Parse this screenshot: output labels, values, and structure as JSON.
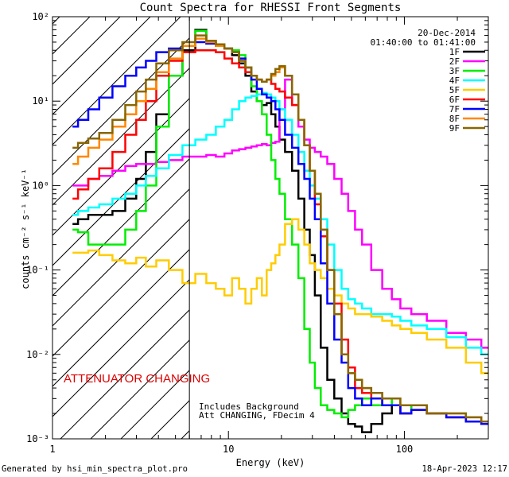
{
  "chart_data": {
    "type": "line",
    "title": "Count Spectra for RHESSI Front Segments",
    "xlabel": "Energy (keV)",
    "ylabel": "counts cm⁻² s⁻¹ keV⁻¹",
    "xscale": "log",
    "yscale": "log",
    "xlim": [
      1,
      300
    ],
    "ylim": [
      0.001,
      100
    ],
    "x_ticks": [
      {
        "value": 1,
        "label": "1"
      },
      {
        "value": 10,
        "label": "10"
      },
      {
        "value": 100,
        "label": "100"
      }
    ],
    "y_ticks": [
      {
        "exp": -3,
        "label": "10⁻³"
      },
      {
        "exp": -2,
        "label": "10⁻²"
      },
      {
        "exp": -1,
        "label": "10⁻¹"
      },
      {
        "exp": 0,
        "label": "10⁰"
      },
      {
        "exp": 1,
        "label": "10¹"
      },
      {
        "exp": 2,
        "label": "10²"
      }
    ],
    "date_label": "20-Dec-2014",
    "time_range_label": "01:40:00 to 01:41:00",
    "attenuator_label": "ATTENUATOR CHANGING",
    "attenuator_color": "#dd0000",
    "note_line1": "Includes Background",
    "note_line2": "Att CHANGING, FDecim 4",
    "vline_energy": 6,
    "series": [
      {
        "name": "1F",
        "color": "#000000",
        "x": [
          1.3,
          1.5,
          1.7,
          2,
          2.4,
          2.8,
          3.2,
          3.6,
          4.2,
          5,
          6,
          7,
          8,
          9,
          10,
          11,
          12,
          13,
          14,
          15,
          16,
          17,
          18,
          19,
          20,
          22,
          24,
          26,
          28,
          30,
          32,
          35,
          38,
          42,
          46,
          50,
          55,
          60,
          70,
          80,
          90,
          100,
          120,
          150,
          200,
          250,
          300
        ],
        "y": [
          0.35,
          0.4,
          0.45,
          0.45,
          0.5,
          0.7,
          1.2,
          2.5,
          7,
          20,
          40,
          70,
          52,
          45,
          42,
          35,
          28,
          20,
          13,
          10,
          9,
          9.5,
          7,
          5,
          3.5,
          2.5,
          1.5,
          0.7,
          0.3,
          0.15,
          0.05,
          0.012,
          0.005,
          0.003,
          0.002,
          0.0015,
          0.0014,
          0.0012,
          0.0015,
          0.002,
          0.0025,
          0.002,
          0.0025,
          0.002,
          0.0018,
          0.0016,
          0.0015
        ]
      },
      {
        "name": "2F",
        "color": "#ff00ff",
        "x": [
          1.3,
          1.5,
          1.7,
          2,
          2.4,
          2.8,
          3.2,
          3.6,
          4.2,
          5,
          6,
          7,
          8,
          9,
          10,
          11,
          12,
          13,
          14,
          15,
          16,
          17,
          18,
          19,
          20,
          22,
          24,
          26,
          28,
          30,
          32,
          35,
          38,
          42,
          46,
          50,
          55,
          60,
          70,
          80,
          90,
          100,
          120,
          150,
          200,
          250,
          300
        ],
        "y": [
          1.0,
          1.0,
          1.2,
          1.3,
          1.5,
          1.7,
          1.8,
          1.8,
          1.9,
          2.0,
          2.2,
          2.2,
          2.3,
          2.2,
          2.4,
          2.6,
          2.7,
          2.8,
          2.9,
          3.0,
          3.1,
          3.0,
          3.2,
          3.3,
          8,
          18,
          9,
          5,
          3.5,
          2.8,
          2.5,
          2.2,
          1.8,
          1.2,
          0.8,
          0.5,
          0.3,
          0.2,
          0.1,
          0.06,
          0.045,
          0.035,
          0.03,
          0.025,
          0.018,
          0.015,
          0.012
        ]
      },
      {
        "name": "3F",
        "color": "#00ee00",
        "x": [
          1.3,
          1.5,
          1.7,
          2,
          2.4,
          2.8,
          3.2,
          3.6,
          4.2,
          5,
          6,
          7,
          8,
          9,
          10,
          11,
          12,
          13,
          14,
          15,
          16,
          17,
          18,
          19,
          20,
          22,
          24,
          26,
          28,
          30,
          32,
          35,
          38,
          42,
          46,
          50,
          55,
          60,
          70,
          80,
          90,
          100,
          120,
          150,
          200,
          250,
          300
        ],
        "y": [
          0.3,
          0.28,
          0.2,
          0.2,
          0.2,
          0.3,
          0.5,
          1.0,
          5,
          20,
          45,
          68,
          50,
          45,
          42,
          40,
          35,
          25,
          15,
          10,
          7,
          4,
          2,
          1.2,
          0.8,
          0.4,
          0.2,
          0.08,
          0.02,
          0.008,
          0.004,
          0.0025,
          0.0022,
          0.002,
          0.0018,
          0.0022,
          0.0025,
          0.003,
          0.0025,
          0.003,
          0.0025,
          0.002,
          0.0025,
          0.002,
          0.0018,
          0.0016,
          0.0015
        ]
      },
      {
        "name": "4F",
        "color": "#00ffff",
        "x": [
          1.3,
          1.5,
          1.7,
          2,
          2.4,
          2.8,
          3.2,
          3.6,
          4.2,
          5,
          6,
          7,
          8,
          9,
          10,
          11,
          12,
          13,
          14,
          15,
          16,
          17,
          18,
          19,
          20,
          22,
          24,
          26,
          28,
          30,
          32,
          35,
          38,
          42,
          46,
          50,
          55,
          60,
          70,
          80,
          90,
          100,
          120,
          150,
          200,
          250,
          300
        ],
        "y": [
          0.45,
          0.5,
          0.55,
          0.6,
          0.7,
          0.8,
          1.0,
          1.3,
          1.6,
          2.3,
          3.0,
          3.5,
          4.0,
          5.0,
          6.0,
          8.0,
          10,
          11,
          11.5,
          12,
          12.5,
          12,
          11,
          10,
          8,
          6,
          4,
          2.5,
          1.5,
          1.0,
          0.7,
          0.4,
          0.2,
          0.1,
          0.06,
          0.045,
          0.04,
          0.035,
          0.03,
          0.03,
          0.028,
          0.025,
          0.022,
          0.02,
          0.016,
          0.012,
          0.01
        ]
      },
      {
        "name": "5F",
        "color": "#ffcc00",
        "x": [
          1.3,
          1.5,
          1.7,
          2,
          2.4,
          2.8,
          3.2,
          3.6,
          4.2,
          5,
          6,
          7,
          8,
          9,
          10,
          11,
          12,
          13,
          14,
          15,
          16,
          17,
          18,
          19,
          20,
          22,
          24,
          26,
          28,
          30,
          32,
          35,
          38,
          42,
          46,
          50,
          55,
          60,
          70,
          80,
          90,
          100,
          120,
          150,
          200,
          250,
          300
        ],
        "y": [
          0.16,
          0.16,
          0.17,
          0.15,
          0.13,
          0.12,
          0.14,
          0.11,
          0.13,
          0.1,
          0.07,
          0.09,
          0.07,
          0.06,
          0.05,
          0.08,
          0.06,
          0.04,
          0.06,
          0.08,
          0.05,
          0.1,
          0.12,
          0.15,
          0.2,
          0.35,
          0.4,
          0.3,
          0.2,
          0.12,
          0.1,
          0.08,
          0.06,
          0.05,
          0.04,
          0.035,
          0.03,
          0.03,
          0.028,
          0.025,
          0.022,
          0.02,
          0.018,
          0.015,
          0.012,
          0.008,
          0.006
        ]
      },
      {
        "name": "6F",
        "color": "#ff0000",
        "x": [
          1.3,
          1.5,
          1.7,
          2,
          2.4,
          2.8,
          3.2,
          3.6,
          4.2,
          5,
          6,
          7,
          8,
          9,
          10,
          11,
          12,
          13,
          14,
          15,
          16,
          17,
          18,
          19,
          20,
          22,
          24,
          26,
          28,
          30,
          32,
          35,
          38,
          42,
          46,
          50,
          55,
          60,
          70,
          80,
          90,
          100,
          120,
          150,
          200,
          250,
          300
        ],
        "y": [
          0.7,
          0.9,
          1.2,
          1.6,
          2.5,
          4,
          6,
          10,
          20,
          30,
          38,
          40,
          40,
          38,
          32,
          28,
          25,
          22,
          20,
          18,
          17,
          18,
          16,
          14,
          13,
          11,
          9,
          6,
          3,
          1.5,
          0.6,
          0.25,
          0.1,
          0.04,
          0.015,
          0.007,
          0.004,
          0.0035,
          0.003,
          0.0025,
          0.0025,
          0.002,
          0.0022,
          0.002,
          0.0018,
          0.0016,
          0.0015
        ]
      },
      {
        "name": "7F",
        "color": "#0000ff",
        "x": [
          1.3,
          1.5,
          1.7,
          2,
          2.4,
          2.8,
          3.2,
          3.6,
          4.2,
          5,
          6,
          7,
          8,
          9,
          10,
          11,
          12,
          13,
          14,
          15,
          16,
          17,
          18,
          19,
          20,
          22,
          24,
          26,
          28,
          30,
          32,
          35,
          38,
          42,
          46,
          50,
          55,
          60,
          70,
          80,
          90,
          100,
          120,
          150,
          200,
          250,
          300
        ],
        "y": [
          5,
          6,
          8,
          11,
          15,
          20,
          25,
          30,
          38,
          42,
          45,
          50,
          48,
          45,
          42,
          38,
          32,
          25,
          18,
          14,
          12,
          11,
          10,
          8,
          6,
          4,
          2.8,
          1.8,
          1.2,
          0.7,
          0.4,
          0.12,
          0.04,
          0.015,
          0.008,
          0.004,
          0.003,
          0.0025,
          0.003,
          0.0025,
          0.0025,
          0.002,
          0.0022,
          0.002,
          0.0018,
          0.0016,
          0.0015
        ]
      },
      {
        "name": "8F",
        "color": "#ff8800",
        "x": [
          1.3,
          1.5,
          1.7,
          2,
          2.4,
          2.8,
          3.2,
          3.6,
          4.2,
          5,
          6,
          7,
          8,
          9,
          10,
          11,
          12,
          13,
          14,
          15,
          16,
          17,
          18,
          19,
          20,
          22,
          24,
          26,
          28,
          30,
          32,
          35,
          38,
          42,
          46,
          50,
          55,
          60,
          70,
          80,
          90,
          100,
          120,
          150,
          200,
          250,
          300
        ],
        "y": [
          1.8,
          2.2,
          2.8,
          3.5,
          5,
          7,
          10,
          14,
          22,
          32,
          45,
          55,
          50,
          45,
          42,
          38,
          30,
          25,
          20,
          18,
          17,
          18,
          20,
          22,
          25,
          20,
          12,
          6,
          3,
          1.5,
          0.8,
          0.3,
          0.1,
          0.03,
          0.01,
          0.006,
          0.005,
          0.004,
          0.0035,
          0.003,
          0.003,
          0.0025,
          0.0025,
          0.002,
          0.002,
          0.0018,
          0.0016
        ]
      },
      {
        "name": "9F",
        "color": "#886600",
        "x": [
          1.3,
          1.5,
          1.7,
          2,
          2.4,
          2.8,
          3.2,
          3.6,
          4.2,
          5,
          6,
          7,
          8,
          9,
          10,
          11,
          12,
          13,
          14,
          15,
          16,
          17,
          18,
          19,
          20,
          22,
          24,
          26,
          28,
          30,
          32,
          35,
          38,
          42,
          46,
          50,
          55,
          60,
          70,
          80,
          90,
          100,
          120,
          150,
          200,
          250,
          300
        ],
        "y": [
          2.8,
          3.2,
          3.6,
          4.2,
          6,
          9,
          13,
          18,
          28,
          40,
          50,
          60,
          52,
          47,
          42,
          38,
          30,
          25,
          20,
          18,
          17,
          18,
          21,
          24,
          26,
          20,
          12,
          6,
          3,
          1.5,
          0.8,
          0.3,
          0.1,
          0.03,
          0.01,
          0.006,
          0.005,
          0.004,
          0.0035,
          0.003,
          0.003,
          0.0025,
          0.0025,
          0.002,
          0.002,
          0.0018,
          0.0016
        ]
      }
    ]
  },
  "footer": {
    "generated_by": "Generated by hsi_min_spectra_plot.pro",
    "timestamp": "18-Apr-2023 12:17"
  }
}
